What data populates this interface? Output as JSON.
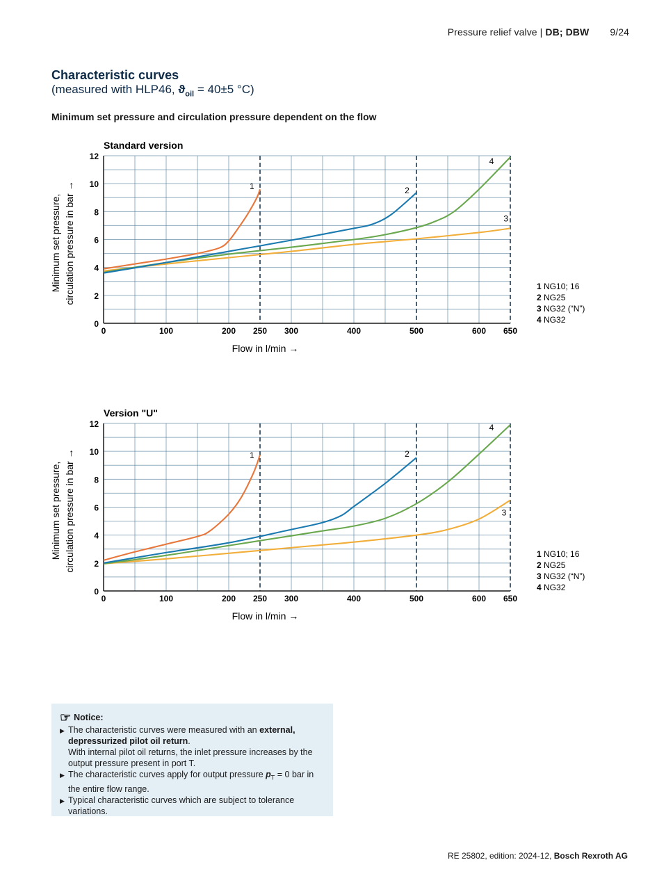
{
  "header": {
    "doc_title": "Pressure relief valve | ",
    "doc_title_bold": "DB; DBW",
    "page": "9/24"
  },
  "title": "Characteristic curves",
  "subtitle_pre": "(measured with HLP46, ",
  "subtitle_theta": "ϑ",
  "subtitle_sub": "oil",
  "subtitle_post": " = 40±5 °C)",
  "section_title": "Minimum set pressure and circulation pressure dependent on the flow",
  "colors": {
    "1": "#e8773c",
    "2": "#1b7ab0",
    "3": "#f2ae3a",
    "4": "#6aa84f",
    "grid": "#3a6d8c"
  },
  "chart_data": [
    {
      "type": "line",
      "title": "Standard version",
      "xlabel": "Flow in l/min →",
      "ylabel_line1": "Minimum set pressure,",
      "ylabel_line2": "circulation pressure in bar →",
      "xlim": [
        0,
        650
      ],
      "ylim": [
        0,
        12
      ],
      "xticks": [
        0,
        100,
        200,
        250,
        300,
        400,
        500,
        600,
        650
      ],
      "yticks": [
        0,
        2,
        4,
        6,
        8,
        10,
        12
      ],
      "dashed_x": [
        250,
        500,
        650
      ],
      "grid": true,
      "legend_position": "right",
      "legend": [
        {
          "num": "1",
          "text": "NG10; 16"
        },
        {
          "num": "2",
          "text": "NG25"
        },
        {
          "num": "3",
          "text": "NG32 (“N”)"
        },
        {
          "num": "4",
          "text": "NG32"
        }
      ],
      "series": [
        {
          "label": "1",
          "label_at": [
            237,
            9.6
          ],
          "points": [
            [
              0,
              3.9
            ],
            [
              50,
              4.25
            ],
            [
              100,
              4.6
            ],
            [
              150,
              5.0
            ],
            [
              185,
              5.4
            ],
            [
              200,
              5.9
            ],
            [
              215,
              6.8
            ],
            [
              230,
              7.8
            ],
            [
              245,
              9.0
            ],
            [
              250,
              9.6
            ]
          ]
        },
        {
          "label": "2",
          "label_at": [
            485,
            9.3
          ],
          "points": [
            [
              0,
              3.6
            ],
            [
              100,
              4.35
            ],
            [
              200,
              5.15
            ],
            [
              300,
              5.95
            ],
            [
              400,
              6.8
            ],
            [
              430,
              7.1
            ],
            [
              460,
              7.8
            ],
            [
              500,
              9.35
            ]
          ]
        },
        {
          "label": "3",
          "label_at": [
            643,
            7.3
          ],
          "points": [
            [
              0,
              3.75
            ],
            [
              100,
              4.25
            ],
            [
              200,
              4.7
            ],
            [
              300,
              5.15
            ],
            [
              400,
              5.65
            ],
            [
              500,
              6.05
            ],
            [
              600,
              6.5
            ],
            [
              650,
              6.8
            ]
          ]
        },
        {
          "label": "4",
          "label_at": [
            620,
            11.4
          ],
          "points": [
            [
              0,
              3.65
            ],
            [
              100,
              4.35
            ],
            [
              200,
              4.95
            ],
            [
              300,
              5.45
            ],
            [
              400,
              6.0
            ],
            [
              450,
              6.35
            ],
            [
              500,
              6.85
            ],
            [
              530,
              7.3
            ],
            [
              560,
              8.0
            ],
            [
              600,
              9.6
            ],
            [
              650,
              11.9
            ]
          ]
        }
      ]
    },
    {
      "type": "line",
      "title": "Version \"U\"",
      "xlabel": "Flow in l/min →",
      "ylabel_line1": "Minimum set pressure,",
      "ylabel_line2": "circulation pressure in bar →",
      "xlim": [
        0,
        650
      ],
      "ylim": [
        0,
        12
      ],
      "xticks": [
        0,
        100,
        200,
        250,
        300,
        400,
        500,
        600,
        650
      ],
      "yticks": [
        0,
        2,
        4,
        6,
        8,
        10,
        12
      ],
      "dashed_x": [
        250,
        500,
        650
      ],
      "grid": true,
      "legend_position": "right",
      "legend": [
        {
          "num": "1",
          "text": "NG10; 16"
        },
        {
          "num": "2",
          "text": "NG25"
        },
        {
          "num": "3",
          "text": "NG32 (“N”)"
        },
        {
          "num": "4",
          "text": "NG32"
        }
      ],
      "series": [
        {
          "label": "1",
          "label_at": [
            237,
            9.5
          ],
          "points": [
            [
              0,
              2.2
            ],
            [
              50,
              2.8
            ],
            [
              100,
              3.35
            ],
            [
              150,
              3.9
            ],
            [
              170,
              4.3
            ],
            [
              200,
              5.5
            ],
            [
              220,
              6.7
            ],
            [
              240,
              8.5
            ],
            [
              250,
              9.75
            ]
          ]
        },
        {
          "label": "2",
          "label_at": [
            485,
            9.6
          ],
          "points": [
            [
              0,
              2.0
            ],
            [
              100,
              2.75
            ],
            [
              200,
              3.45
            ],
            [
              300,
              4.4
            ],
            [
              350,
              4.9
            ],
            [
              380,
              5.4
            ],
            [
              400,
              6.05
            ],
            [
              450,
              7.7
            ],
            [
              500,
              9.55
            ]
          ]
        },
        {
          "label": "3",
          "label_at": [
            640,
            5.4
          ],
          "points": [
            [
              0,
              1.95
            ],
            [
              100,
              2.3
            ],
            [
              200,
              2.7
            ],
            [
              300,
              3.1
            ],
            [
              400,
              3.5
            ],
            [
              500,
              4.0
            ],
            [
              550,
              4.4
            ],
            [
              600,
              5.15
            ],
            [
              650,
              6.5
            ]
          ]
        },
        {
          "label": "4",
          "label_at": [
            620,
            11.5
          ],
          "points": [
            [
              0,
              1.95
            ],
            [
              100,
              2.55
            ],
            [
              200,
              3.25
            ],
            [
              300,
              3.95
            ],
            [
              350,
              4.3
            ],
            [
              400,
              4.65
            ],
            [
              450,
              5.2
            ],
            [
              500,
              6.25
            ],
            [
              550,
              7.8
            ],
            [
              600,
              9.8
            ],
            [
              650,
              11.9
            ]
          ]
        }
      ]
    }
  ],
  "notice": {
    "title": "Notice:",
    "items": [
      {
        "pre": "The characteristic curves were measured with an ",
        "bold": "external, depressurized pilot oil return",
        "post": ".",
        "extra": "With internal pilot oil returns, the inlet pressure increases by the output pressure present in port T."
      },
      {
        "pre": "The characteristic curves apply for output pressure ",
        "sym": "p",
        "sub": "T",
        "post": " = 0 bar in the entire flow range."
      },
      {
        "pre": "Typical characteristic curves which are subject to tolerance variations."
      }
    ]
  },
  "footer": {
    "text": "RE 25802, edition: 2024-12, ",
    "bold": "Bosch Rexroth AG"
  }
}
